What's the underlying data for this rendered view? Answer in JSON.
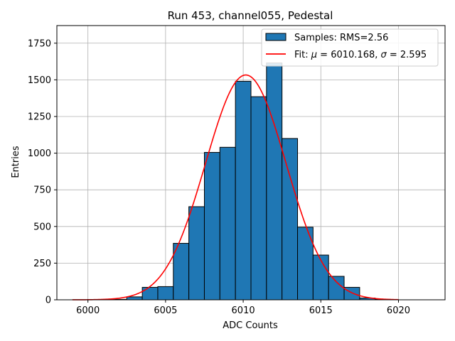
{
  "chart_data": {
    "type": "bar",
    "title": "Run 453, channel055, Pedestal",
    "xlabel": "ADC Counts",
    "ylabel": "Entries",
    "xlim": [
      5998,
      6023
    ],
    "ylim": [
      0,
      1870
    ],
    "xticks": [
      6000,
      6005,
      6010,
      6015,
      6020
    ],
    "yticks": [
      0,
      250,
      500,
      750,
      1000,
      1250,
      1500,
      1750
    ],
    "grid": true,
    "legend_position": "top-right",
    "bar_color": "#1f77b4",
    "fit_color": "#ff0000",
    "histogram": {
      "name": "Samples: RMS=2.56",
      "bin_width": 1,
      "bins": [
        {
          "x": 6002,
          "count": 3
        },
        {
          "x": 6003,
          "count": 20
        },
        {
          "x": 6004,
          "count": 85
        },
        {
          "x": 6005,
          "count": 90
        },
        {
          "x": 6006,
          "count": 385
        },
        {
          "x": 6007,
          "count": 635
        },
        {
          "x": 6008,
          "count": 1005
        },
        {
          "x": 6009,
          "count": 1040
        },
        {
          "x": 6010,
          "count": 1490
        },
        {
          "x": 6011,
          "count": 1385
        },
        {
          "x": 6012,
          "count": 1615
        },
        {
          "x": 6013,
          "count": 1100
        },
        {
          "x": 6014,
          "count": 495
        },
        {
          "x": 6015,
          "count": 305
        },
        {
          "x": 6016,
          "count": 160
        },
        {
          "x": 6017,
          "count": 85
        },
        {
          "x": 6018,
          "count": 12
        },
        {
          "x": 6019,
          "count": 3
        }
      ]
    },
    "fit": {
      "label_prefix": "Fit: ",
      "label_mu": "μ",
      "label_mu_value": " = 6010.168, ",
      "label_sigma": "σ",
      "label_sigma_value": " = 2.595",
      "mu": 6010.168,
      "sigma": 2.595,
      "amplitude": 1533,
      "x_range": [
        5999,
        6020
      ]
    }
  }
}
